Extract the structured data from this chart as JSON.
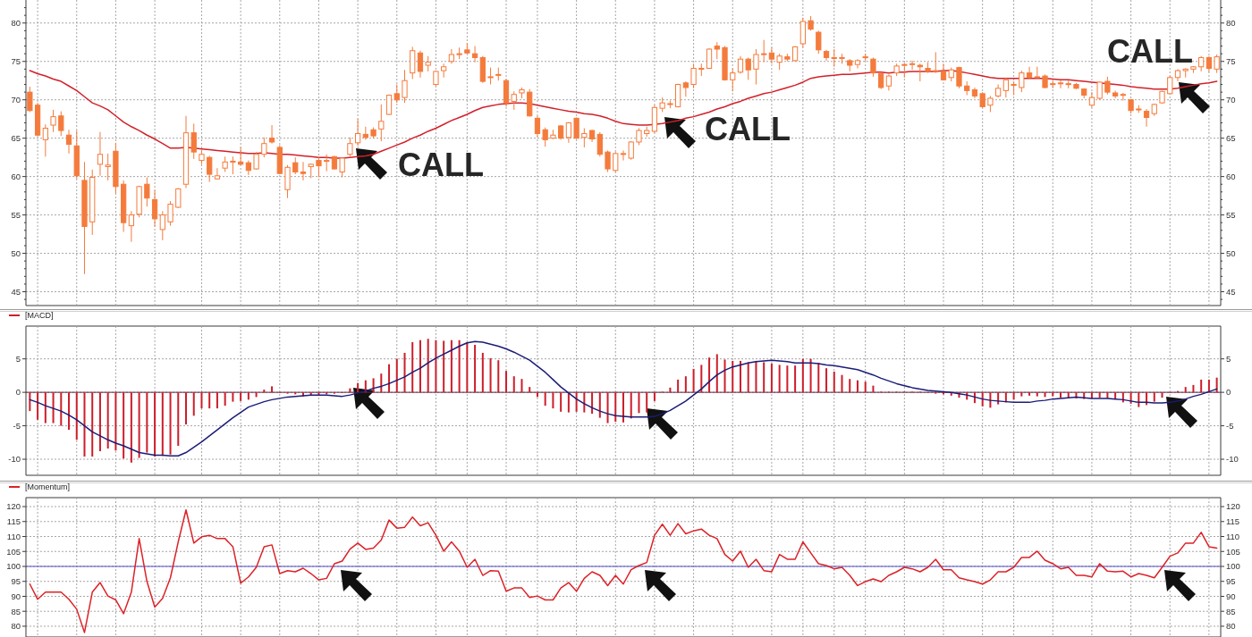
{
  "chart_data": [
    {
      "type": "candlestick",
      "color": "#f47b3c",
      "categories": [
        null,
        null,
        null,
        null,
        null,
        null,
        null,
        null,
        null,
        null,
        null,
        null,
        null,
        null,
        null,
        null,
        null,
        null,
        null,
        null,
        null,
        null,
        null,
        null,
        null,
        null,
        null,
        null,
        null,
        null,
        null,
        null,
        null,
        null,
        null,
        null,
        null,
        null,
        null,
        null,
        null,
        null,
        null,
        null,
        null,
        null,
        null,
        null,
        null,
        null,
        null,
        null,
        null,
        null,
        null,
        null,
        null,
        null,
        null,
        null,
        null,
        null,
        null,
        null,
        null,
        null,
        null,
        null,
        null,
        null,
        null,
        null,
        null,
        null,
        null,
        null,
        null,
        null,
        null,
        null,
        null,
        null,
        null,
        null,
        null,
        null,
        null,
        null,
        null,
        null,
        null,
        null,
        null,
        null,
        null,
        null,
        null,
        null,
        null,
        null,
        null,
        null,
        null,
        null,
        null,
        null,
        null,
        null,
        null,
        null,
        null,
        null,
        null,
        null,
        null,
        null,
        null,
        null,
        null,
        null,
        null,
        null,
        null,
        null,
        null,
        null,
        null,
        null,
        null,
        null,
        null,
        null,
        null,
        null,
        null,
        null,
        null,
        null,
        null,
        null,
        null,
        null,
        null,
        null,
        null,
        null,
        null,
        null,
        null,
        null,
        null,
        null,
        null
      ],
      "ohlc": [
        [
          71.0,
          71.7,
          68.4,
          68.6
        ],
        [
          69.3,
          69.6,
          65.3,
          65.4
        ],
        [
          64.8,
          66.8,
          62.6,
          66.3
        ],
        [
          66.7,
          68.7,
          65.8,
          67.8
        ],
        [
          67.9,
          68.5,
          65.3,
          66.0
        ],
        [
          65.4,
          66.1,
          63.0,
          64.2
        ],
        [
          64.0,
          66.0,
          59.7,
          60.1
        ],
        [
          59.5,
          61.9,
          47.3,
          53.5
        ],
        [
          54.1,
          60.9,
          52.4,
          59.9
        ],
        [
          61.6,
          65.8,
          60.1,
          62.9
        ],
        [
          61.3,
          63.0,
          59.5,
          61.5
        ],
        [
          63.3,
          64.4,
          57.8,
          58.7
        ],
        [
          59.0,
          59.5,
          52.8,
          54.0
        ],
        [
          53.6,
          55.5,
          51.5,
          55.0
        ],
        [
          55.1,
          58.8,
          54.7,
          58.7
        ],
        [
          59.0,
          59.9,
          56.1,
          57.2
        ],
        [
          57.0,
          58.2,
          53.5,
          54.5
        ],
        [
          53.1,
          55.5,
          51.7,
          55.0
        ],
        [
          54.1,
          56.8,
          53.6,
          56.4
        ],
        [
          56.0,
          58.5,
          55.9,
          58.4
        ],
        [
          59.0,
          67.9,
          58.5,
          65.7
        ],
        [
          65.7,
          66.9,
          62.3,
          63.2
        ],
        [
          62.1,
          63.4,
          61.6,
          62.9
        ],
        [
          62.5,
          62.7,
          59.3,
          60.3
        ],
        [
          59.7,
          61.1,
          59.6,
          60.1
        ],
        [
          61.1,
          62.6,
          60.6,
          61.9
        ],
        [
          61.9,
          62.6,
          60.3,
          62.0
        ],
        [
          61.9,
          63.8,
          61.5,
          61.6
        ],
        [
          61.8,
          62.1,
          60.2,
          60.8
        ],
        [
          61.0,
          63.2,
          60.9,
          62.9
        ],
        [
          62.9,
          65.1,
          62.5,
          64.3
        ],
        [
          65.0,
          66.7,
          64.3,
          64.5
        ],
        [
          63.8,
          64.1,
          60.3,
          60.4
        ],
        [
          58.3,
          61.5,
          57.2,
          61.2
        ],
        [
          61.8,
          62.5,
          60.3,
          60.6
        ],
        [
          60.6,
          61.9,
          59.5,
          60.4
        ],
        [
          61.3,
          61.7,
          59.8,
          61.6
        ],
        [
          62.1,
          62.5,
          59.9,
          61.4
        ],
        [
          62.0,
          62.9,
          60.7,
          62.1
        ],
        [
          62.6,
          62.7,
          60.9,
          61.0
        ],
        [
          60.6,
          62.5,
          59.9,
          62.4
        ],
        [
          62.9,
          65.1,
          62.6,
          64.3
        ],
        [
          64.4,
          67.5,
          64.0,
          65.6
        ],
        [
          65.5,
          66.5,
          64.8,
          65.1
        ],
        [
          66.1,
          66.4,
          65.0,
          65.3
        ],
        [
          66.2,
          69.4,
          64.6,
          67.2
        ],
        [
          68.1,
          70.7,
          68.0,
          70.6
        ],
        [
          70.8,
          72.0,
          69.6,
          70.0
        ],
        [
          70.3,
          73.9,
          69.6,
          72.5
        ],
        [
          73.5,
          76.9,
          72.7,
          76.4
        ],
        [
          76.1,
          76.4,
          72.9,
          73.7
        ],
        [
          74.5,
          75.7,
          73.7,
          74.9
        ],
        [
          72.0,
          73.8,
          71.8,
          73.7
        ],
        [
          73.8,
          74.7,
          72.9,
          74.3
        ],
        [
          75.0,
          76.6,
          74.7,
          75.9
        ],
        [
          75.9,
          76.8,
          75.3,
          76.0
        ],
        [
          76.5,
          77.4,
          76.0,
          76.1
        ],
        [
          76.0,
          77.0,
          74.9,
          75.5
        ],
        [
          75.5,
          75.7,
          72.2,
          72.4
        ],
        [
          73.0,
          74.2,
          72.0,
          72.9
        ],
        [
          73.3,
          74.2,
          72.5,
          73.2
        ],
        [
          72.5,
          72.7,
          69.1,
          69.6
        ],
        [
          69.8,
          71.1,
          68.7,
          70.7
        ],
        [
          70.9,
          71.6,
          70.2,
          71.3
        ],
        [
          71.0,
          71.4,
          67.8,
          67.9
        ],
        [
          67.6,
          67.9,
          65.2,
          65.6
        ],
        [
          66.1,
          66.4,
          63.9,
          64.8
        ],
        [
          65.0,
          66.1,
          64.9,
          65.4
        ],
        [
          66.6,
          66.7,
          64.8,
          65.0
        ],
        [
          65.1,
          67.1,
          64.4,
          67.0
        ],
        [
          67.6,
          67.7,
          64.9,
          65.0
        ],
        [
          65.1,
          66.3,
          63.8,
          65.6
        ],
        [
          66.0,
          66.1,
          64.5,
          64.9
        ],
        [
          65.5,
          65.8,
          62.6,
          62.9
        ],
        [
          63.2,
          63.4,
          60.6,
          61.0
        ],
        [
          60.8,
          63.2,
          60.6,
          63.0
        ],
        [
          62.9,
          63.4,
          62.1,
          63.0
        ],
        [
          62.4,
          64.6,
          62.2,
          64.5
        ],
        [
          64.5,
          66.3,
          64.1,
          66.0
        ],
        [
          65.6,
          66.5,
          65.2,
          66.0
        ],
        [
          65.9,
          69.3,
          65.7,
          69.0
        ],
        [
          68.9,
          70.3,
          68.4,
          69.6
        ],
        [
          69.4,
          69.9,
          68.9,
          69.5
        ],
        [
          69.1,
          72.1,
          69.0,
          72.0
        ],
        [
          72.2,
          72.4,
          70.4,
          71.6
        ],
        [
          72.0,
          74.7,
          71.5,
          74.1
        ],
        [
          74.0,
          74.7,
          73.1,
          74.1
        ],
        [
          74.1,
          76.7,
          74.0,
          76.6
        ],
        [
          77.0,
          77.5,
          75.3,
          76.6
        ],
        [
          76.8,
          77.0,
          72.5,
          72.6
        ],
        [
          72.6,
          74.1,
          71.1,
          73.5
        ],
        [
          73.6,
          75.7,
          73.4,
          75.3
        ],
        [
          75.3,
          75.5,
          72.6,
          73.9
        ],
        [
          74.0,
          76.6,
          72.0,
          75.9
        ],
        [
          75.9,
          77.8,
          74.9,
          76.0
        ],
        [
          76.1,
          76.8,
          74.7,
          75.3
        ],
        [
          74.9,
          76.0,
          73.9,
          75.7
        ],
        [
          75.6,
          76.0,
          75.0,
          75.3
        ],
        [
          75.1,
          77.0,
          75.0,
          76.9
        ],
        [
          77.3,
          80.7,
          76.8,
          80.2
        ],
        [
          80.3,
          80.9,
          79.0,
          79.2
        ],
        [
          78.8,
          79.0,
          76.0,
          76.5
        ],
        [
          76.3,
          76.5,
          75.1,
          75.5
        ],
        [
          75.5,
          76.6,
          74.3,
          75.4
        ],
        [
          75.4,
          76.0,
          74.7,
          75.5
        ],
        [
          75.1,
          75.3,
          73.7,
          74.5
        ],
        [
          74.6,
          75.3,
          74.1,
          75.1
        ],
        [
          75.5,
          76.0,
          75.1,
          75.6
        ],
        [
          75.3,
          75.5,
          73.0,
          73.5
        ],
        [
          73.4,
          73.5,
          71.4,
          71.6
        ],
        [
          71.8,
          73.3,
          71.2,
          73.1
        ],
        [
          73.5,
          74.7,
          73.1,
          74.4
        ],
        [
          74.5,
          74.8,
          72.9,
          74.6
        ],
        [
          74.6,
          75.1,
          73.9,
          74.7
        ],
        [
          74.5,
          74.7,
          72.4,
          74.3
        ],
        [
          74.1,
          74.9,
          73.5,
          73.7
        ],
        [
          73.8,
          76.2,
          73.5,
          73.7
        ],
        [
          73.7,
          74.7,
          72.5,
          72.6
        ],
        [
          72.9,
          74.2,
          72.4,
          73.9
        ],
        [
          74.2,
          74.3,
          71.5,
          71.8
        ],
        [
          71.8,
          72.4,
          70.6,
          71.2
        ],
        [
          71.3,
          71.6,
          70.2,
          70.5
        ],
        [
          70.8,
          71.0,
          69.0,
          69.1
        ],
        [
          69.3,
          70.5,
          68.4,
          70.2
        ],
        [
          70.5,
          72.0,
          70.3,
          71.5
        ],
        [
          71.2,
          72.9,
          70.3,
          72.6
        ],
        [
          71.9,
          72.4,
          70.6,
          72.0
        ],
        [
          71.6,
          73.8,
          71.0,
          73.5
        ],
        [
          73.5,
          74.3,
          72.7,
          72.9
        ],
        [
          73.0,
          74.3,
          72.8,
          72.9
        ],
        [
          73.1,
          73.3,
          71.5,
          71.6
        ],
        [
          72.0,
          72.5,
          71.5,
          72.1
        ],
        [
          72.1,
          72.5,
          71.5,
          72.2
        ],
        [
          72.1,
          72.5,
          71.5,
          72.0
        ],
        [
          72.0,
          72.2,
          71.4,
          71.5
        ],
        [
          71.4,
          71.5,
          70.2,
          70.6
        ],
        [
          69.3,
          71.0,
          69.0,
          70.3
        ],
        [
          70.2,
          72.4,
          70.0,
          72.3
        ],
        [
          72.4,
          73.0,
          70.7,
          71.0
        ],
        [
          70.9,
          71.2,
          70.2,
          70.5
        ],
        [
          70.6,
          70.9,
          69.9,
          70.7
        ],
        [
          70.0,
          70.1,
          68.2,
          68.6
        ],
        [
          68.8,
          69.3,
          68.3,
          68.7
        ],
        [
          68.5,
          68.8,
          66.5,
          67.7
        ],
        [
          68.2,
          69.5,
          67.9,
          69.4
        ],
        [
          69.6,
          71.2,
          69.5,
          71.1
        ],
        [
          70.8,
          73.1,
          70.7,
          72.9
        ],
        [
          72.9,
          74.0,
          72.4,
          73.8
        ],
        [
          73.8,
          74.1,
          72.9,
          74.0
        ],
        [
          74.0,
          74.4,
          73.5,
          74.3
        ],
        [
          74.3,
          75.7,
          73.7,
          75.5
        ],
        [
          75.5,
          75.7,
          73.6,
          74.1
        ],
        [
          74.0,
          75.9,
          73.5,
          75.6
        ]
      ],
      "series": [
        {
          "type": "line",
          "color": "#d3202a",
          "values": [
            73.8,
            73.4,
            73.1,
            72.7,
            72.4,
            71.8,
            71.2,
            70.4,
            69.6,
            69.2,
            68.7,
            67.9,
            67.1,
            66.5,
            66.0,
            65.4,
            64.9,
            64.3,
            63.7,
            63.7,
            63.8,
            63.7,
            63.6,
            63.5,
            63.4,
            63.3,
            63.2,
            63.1,
            63.0,
            63.0,
            63.1,
            63.0,
            62.9,
            62.9,
            62.8,
            62.7,
            62.6,
            62.5,
            62.5,
            62.4,
            62.4,
            62.5,
            62.6,
            62.7,
            62.9,
            63.3,
            63.7,
            64.1,
            64.5,
            65.0,
            65.4,
            65.9,
            66.3,
            66.8,
            67.3,
            67.7,
            68.1,
            68.6,
            69.0,
            69.2,
            69.4,
            69.5,
            69.6,
            69.6,
            69.5,
            69.3,
            69.1,
            68.9,
            68.7,
            68.5,
            68.4,
            68.2,
            68.1,
            67.9,
            67.6,
            67.2,
            66.9,
            66.8,
            66.7,
            66.7,
            66.8,
            66.9,
            67.1,
            67.3,
            67.6,
            67.8,
            68.1,
            68.4,
            68.8,
            69.1,
            69.5,
            69.8,
            70.2,
            70.5,
            70.8,
            71.0,
            71.3,
            71.6,
            71.9,
            72.3,
            72.8,
            73.0,
            73.1,
            73.2,
            73.3,
            73.3,
            73.4,
            73.5,
            73.6,
            73.6,
            73.5,
            73.6,
            73.6,
            73.7,
            73.7,
            73.7,
            73.7,
            73.8,
            73.8,
            73.7,
            73.5,
            73.3,
            73.1,
            72.9,
            72.8,
            72.8,
            72.8,
            72.8,
            72.8,
            72.8,
            72.8,
            72.7,
            72.6,
            72.6,
            72.5,
            72.4,
            72.3,
            72.2,
            72.1,
            72.0,
            71.9,
            71.7,
            71.6,
            71.5,
            71.4,
            71.4,
            71.4,
            71.5,
            71.7,
            71.9,
            72.1,
            72.2,
            72.4
          ]
        }
      ],
      "ylim": [
        43.2,
        83
      ],
      "yticks": [
        {
          "value": 44,
          "label": null
        },
        45,
        {
          "value": 46,
          "label": null
        },
        {
          "value": 47,
          "label": null
        },
        {
          "value": 48,
          "label": null
        },
        {
          "value": 49,
          "label": null
        },
        50,
        {
          "value": 51,
          "label": null
        },
        {
          "value": 52,
          "label": null
        },
        {
          "value": 53,
          "label": null
        },
        {
          "value": 54,
          "label": null
        },
        55,
        {
          "value": 56,
          "label": null
        },
        {
          "value": 57,
          "label": null
        },
        {
          "value": 58,
          "label": null
        },
        {
          "value": 59,
          "label": null
        },
        60,
        {
          "value": 61,
          "label": null
        },
        {
          "value": 62,
          "label": null
        },
        {
          "value": 63,
          "label": null
        },
        {
          "value": 64,
          "label": null
        },
        65,
        {
          "value": 66,
          "label": null
        },
        {
          "value": 67,
          "label": null
        },
        {
          "value": 68,
          "label": null
        },
        {
          "value": 69,
          "label": null
        },
        70,
        {
          "value": 71,
          "label": null
        },
        {
          "value": 72,
          "label": null
        },
        {
          "value": 73,
          "label": null
        },
        {
          "value": 74,
          "label": null
        },
        75,
        {
          "value": 76,
          "label": null
        },
        {
          "value": 77,
          "label": null
        },
        {
          "value": 78,
          "label": null
        },
        {
          "value": 79,
          "label": null
        },
        80,
        {
          "value": 81,
          "label": null
        },
        {
          "value": 82,
          "label": null
        }
      ],
      "y2lim": [
        43.2,
        83
      ],
      "y2ticks": [
        {
          "value": 44,
          "label": null
        },
        45,
        {
          "value": 46,
          "label": null
        },
        {
          "value": 47,
          "label": null
        },
        {
          "value": 48,
          "label": null
        },
        {
          "value": 49,
          "label": null
        },
        50,
        {
          "value": 51,
          "label": null
        },
        {
          "value": 52,
          "label": null
        },
        {
          "value": 53,
          "label": null
        },
        {
          "value": 54,
          "label": null
        },
        55,
        {
          "value": 56,
          "label": null
        },
        {
          "value": 57,
          "label": null
        },
        {
          "value": 58,
          "label": null
        },
        {
          "value": 59,
          "label": null
        },
        60,
        {
          "value": 61,
          "label": null
        },
        {
          "value": 62,
          "label": null
        },
        {
          "value": 63,
          "label": null
        },
        {
          "value": 64,
          "label": null
        },
        65,
        {
          "value": 66,
          "label": null
        },
        {
          "value": 67,
          "label": null
        },
        {
          "value": 68,
          "label": null
        },
        {
          "value": 69,
          "label": null
        },
        70,
        {
          "value": 71,
          "label": null
        },
        {
          "value": 72,
          "label": null
        },
        {
          "value": 73,
          "label": null
        },
        {
          "value": 74,
          "label": null
        },
        75,
        {
          "value": 76,
          "label": null
        },
        {
          "value": 77,
          "label": null
        },
        {
          "value": 78,
          "label": null
        },
        {
          "value": 79,
          "label": null
        },
        80,
        {
          "value": 81,
          "label": null
        },
        {
          "value": 82,
          "label": null
        }
      ],
      "grid": true,
      "annotations": [
        "CALL",
        "CALL",
        "CALL"
      ]
    },
    {
      "type": "bar",
      "categories": [
        null,
        null,
        null,
        null,
        null,
        null,
        null,
        null,
        null,
        null,
        null,
        null,
        null,
        null,
        null,
        null,
        null,
        null,
        null,
        null,
        null,
        null,
        null,
        null,
        null,
        null,
        null,
        null,
        null,
        null,
        null,
        null,
        null,
        null,
        null,
        null,
        null,
        null,
        null,
        null,
        null,
        null,
        null,
        null,
        null,
        null,
        null,
        null,
        null,
        null,
        null,
        null,
        null,
        null,
        null,
        null,
        null,
        null,
        null,
        null,
        null,
        null,
        null,
        null,
        null,
        null,
        null,
        null,
        null,
        null,
        null,
        null,
        null,
        null,
        null,
        null,
        null,
        null,
        null,
        null,
        null,
        null,
        null,
        null,
        null,
        null,
        null,
        null,
        null,
        null,
        null,
        null,
        null,
        null,
        null,
        null,
        null,
        null,
        null,
        null,
        null,
        null,
        null,
        null,
        null,
        null,
        null,
        null,
        null,
        null,
        null,
        null,
        null,
        null,
        null,
        null,
        null,
        null,
        null,
        null,
        null,
        null,
        null,
        null,
        null,
        null,
        null,
        null,
        null,
        null,
        null,
        null,
        null,
        null,
        null,
        null,
        null,
        null,
        null,
        null,
        null,
        null,
        null,
        null,
        null,
        null,
        null,
        null,
        null,
        null,
        null,
        null,
        null
      ],
      "series": [
        {
          "name": "[MACD]",
          "type": "bar",
          "color": "#cc1f2b",
          "values": [
            -2.8,
            -4.1,
            -4.6,
            -4.6,
            -5.0,
            -5.6,
            -7.1,
            -9.6,
            -9.6,
            -8.8,
            -8.4,
            -8.7,
            -9.9,
            -10.5,
            -9.8,
            -9.0,
            -9.6,
            -9.5,
            -9.3,
            -8.0,
            -4.8,
            -3.5,
            -2.4,
            -2.4,
            -2.4,
            -2.0,
            -1.4,
            -1.3,
            -1.1,
            -0.7,
            0.4,
            0.9,
            -0.1,
            -0.2,
            -0.3,
            -0.6,
            -0.5,
            -0.4,
            -0.3,
            -0.2,
            -0.1,
            0.6,
            1.4,
            1.8,
            2.1,
            2.8,
            4.2,
            5.0,
            5.9,
            7.5,
            7.8,
            8.0,
            7.8,
            7.7,
            7.8,
            7.8,
            7.5,
            7.1,
            5.9,
            5.1,
            4.8,
            3.2,
            2.4,
            2.0,
            0.8,
            -0.7,
            -2.0,
            -2.4,
            -2.9,
            -3.0,
            -2.9,
            -3.0,
            -3.2,
            -3.8,
            -4.6,
            -4.4,
            -4.5,
            -3.9,
            -3.1,
            -3.0,
            -1.3,
            0.1,
            0.7,
            1.9,
            2.4,
            3.5,
            4.1,
            5.2,
            5.7,
            4.9,
            4.7,
            4.7,
            4.5,
            4.7,
            4.5,
            4.3,
            4.1,
            4.0,
            4.0,
            5.0,
            5.0,
            4.4,
            3.6,
            3.1,
            2.6,
            2.0,
            1.8,
            1.6,
            1.0,
            0.1,
            0.1,
            0.1,
            0.1,
            0.1,
            0.1,
            -0.1,
            -0.2,
            -0.3,
            -0.5,
            -0.8,
            -1.1,
            -1.6,
            -2.1,
            -2.3,
            -1.8,
            -1.5,
            -1.1,
            -0.6,
            -0.5,
            -0.6,
            -0.7,
            -0.6,
            -0.8,
            -0.8,
            -0.9,
            -1.0,
            -0.9,
            -0.8,
            -0.9,
            -1.0,
            -1.5,
            -1.7,
            -2.2,
            -1.9,
            -1.4,
            -0.8,
            -0.1,
            0.2,
            0.8,
            1.1,
            1.9,
            1.9,
            2.2
          ]
        },
        {
          "type": "line",
          "color": "#1c1c78",
          "values": [
            -1.1,
            -1.5,
            -2.0,
            -2.4,
            -2.8,
            -3.4,
            -4.1,
            -5.0,
            -5.9,
            -6.5,
            -7.1,
            -7.6,
            -8.0,
            -8.5,
            -9.0,
            -9.2,
            -9.4,
            -9.4,
            -9.5,
            -9.5,
            -9.0,
            -8.2,
            -7.4,
            -6.5,
            -5.6,
            -4.7,
            -3.8,
            -3.0,
            -2.2,
            -1.8,
            -1.4,
            -1.1,
            -0.9,
            -0.7,
            -0.6,
            -0.5,
            -0.4,
            -0.4,
            -0.4,
            -0.5,
            -0.6,
            -0.4,
            -0.1,
            0.2,
            0.6,
            0.9,
            1.3,
            1.8,
            2.3,
            3.0,
            3.6,
            4.4,
            5.1,
            5.7,
            6.3,
            6.9,
            7.4,
            7.6,
            7.5,
            7.2,
            6.9,
            6.5,
            6.0,
            5.4,
            4.8,
            3.9,
            3.0,
            1.9,
            0.8,
            -0.1,
            -1.0,
            -1.7,
            -2.3,
            -2.8,
            -3.2,
            -3.5,
            -3.6,
            -3.7,
            -3.7,
            -3.7,
            -3.6,
            -3.2,
            -2.7,
            -2.0,
            -1.3,
            -0.4,
            0.5,
            1.6,
            2.6,
            3.3,
            3.8,
            4.1,
            4.4,
            4.6,
            4.7,
            4.8,
            4.7,
            4.6,
            4.4,
            4.4,
            4.4,
            4.3,
            4.1,
            4.0,
            3.8,
            3.6,
            3.4,
            3.0,
            2.6,
            2.1,
            1.7,
            1.3,
            1.0,
            0.7,
            0.5,
            0.3,
            0.2,
            0.1,
            0.0,
            -0.2,
            -0.4,
            -0.7,
            -1.0,
            -1.2,
            -1.3,
            -1.4,
            -1.5,
            -1.5,
            -1.5,
            -1.3,
            -1.2,
            -1.0,
            -0.9,
            -0.8,
            -0.7,
            -0.8,
            -0.9,
            -0.9,
            -0.9,
            -1.0,
            -1.1,
            -1.3,
            -1.5,
            -1.5,
            -1.6,
            -1.6,
            -1.5,
            -1.3,
            -1.0,
            -0.6,
            -0.3,
            0.1,
            0.5
          ]
        }
      ],
      "ylim": [
        -12.4,
        9.9
      ],
      "yticks": [
        -10,
        -5,
        0,
        5
      ],
      "y2lim": [
        -12.4,
        9.9
      ],
      "y2ticks": [
        -10,
        -5,
        0,
        5
      ],
      "grid": true,
      "legend": "top left"
    },
    {
      "type": "line",
      "categories": [
        null,
        null,
        null,
        null,
        null,
        null,
        null,
        null,
        null,
        null,
        null,
        null,
        null,
        null,
        null,
        null,
        null,
        null,
        null,
        null,
        null,
        null,
        null,
        null,
        null,
        null,
        null,
        null,
        null,
        null,
        null,
        null,
        null,
        null,
        null,
        null,
        null,
        null,
        null,
        null,
        null,
        null,
        null,
        null,
        null,
        null,
        null,
        null,
        null,
        null,
        null,
        null,
        null,
        null,
        null,
        null,
        null,
        null,
        null,
        null,
        null,
        null,
        null,
        null,
        null,
        null,
        null,
        null,
        null,
        null,
        null,
        null,
        null,
        null,
        null,
        null,
        null,
        null,
        null,
        null,
        null,
        null,
        null,
        null,
        null,
        null,
        null,
        null,
        null,
        null,
        null,
        null,
        null,
        null,
        null,
        null,
        null,
        null,
        null,
        null,
        null,
        null,
        null,
        null,
        null,
        null,
        null,
        null,
        null,
        null,
        null,
        null,
        null,
        null,
        null,
        null,
        null,
        null,
        null,
        null,
        null,
        null,
        null,
        null,
        null,
        null,
        null,
        null,
        null,
        null,
        null,
        null,
        null,
        null,
        null,
        null,
        null,
        null,
        null,
        null,
        null,
        null,
        null,
        null,
        null,
        null,
        null,
        null,
        null,
        null,
        null,
        null,
        null
      ],
      "series": [
        {
          "name": "[Momentum]",
          "color": "#dc2228",
          "values": [
            94.1,
            89.0,
            91.4,
            91.4,
            91.4,
            89.0,
            85.7,
            77.9,
            91.4,
            94.6,
            90.1,
            88.8,
            84.2,
            91.4,
            109.3,
            94.9,
            86.4,
            89.3,
            96.2,
            108.2,
            118.9,
            107.8,
            109.9,
            110.4,
            109.3,
            109.3,
            106.6,
            94.4,
            96.5,
            99.7,
            106.6,
            107.2,
            97.6,
            98.6,
            98.2,
            99.4,
            97.6,
            95.5,
            96.0,
            100.9,
            101.8,
            105.8,
            107.8,
            105.7,
            106.1,
            108.8,
            115.5,
            112.8,
            113.1,
            116.5,
            113.6,
            114.6,
            110.4,
            105.1,
            108.2,
            105.1,
            99.7,
            102.4,
            97.0,
            98.6,
            98.4,
            91.7,
            92.8,
            92.8,
            89.6,
            90.1,
            88.8,
            88.8,
            92.8,
            94.6,
            91.7,
            96.0,
            98.2,
            97.0,
            93.6,
            97.0,
            94.1,
            98.9,
            100.3,
            101.3,
            110.4,
            114.1,
            110.4,
            114.3,
            110.9,
            111.9,
            112.5,
            110.4,
            109.3,
            104.0,
            101.8,
            105.1,
            99.7,
            102.4,
            98.6,
            98.2,
            104.0,
            102.4,
            102.4,
            108.2,
            104.5,
            100.9,
            100.3,
            99.2,
            99.7,
            97.0,
            93.6,
            94.9,
            95.8,
            94.9,
            97.0,
            98.2,
            99.7,
            99.2,
            98.2,
            99.7,
            102.4,
            98.9,
            98.9,
            96.2,
            95.5,
            94.9,
            94.1,
            95.5,
            98.2,
            98.2,
            99.7,
            103.0,
            103.0,
            105.1,
            102.1,
            100.9,
            99.2,
            99.7,
            97.0,
            97.0,
            96.5,
            100.9,
            98.4,
            98.2,
            98.4,
            96.5,
            97.6,
            97.0,
            96.2,
            99.7,
            103.4,
            104.5,
            107.8,
            107.8,
            111.4,
            106.6,
            106.1
          ]
        }
      ],
      "ref_lines": [
        {
          "axis": "y",
          "value": 100,
          "color": "#5050c8"
        }
      ],
      "ylim": [
        76.4,
        123
      ],
      "yticks": [
        80,
        85,
        90,
        95,
        100,
        105,
        110,
        115,
        120
      ],
      "y2lim": [
        76.4,
        123
      ],
      "y2ticks": [
        80,
        85,
        90,
        95,
        100,
        105,
        110,
        115,
        120
      ],
      "grid": true,
      "legend": "top left"
    }
  ]
}
